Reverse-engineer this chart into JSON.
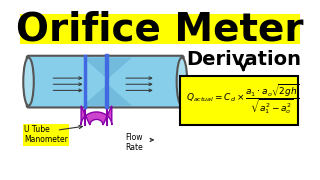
{
  "title": "Orifice Meter",
  "title_bg": "#FFFF00",
  "title_color": "#000000",
  "title_fontsize": 28,
  "bg_color": "#FFFFFF",
  "pipe_color": "#87CEEB",
  "pipe_border": "#555555",
  "pipe_dark": "#4488AA",
  "orifice_color": "#4169E1",
  "manometer_color": "#CC44CC",
  "manometer_border": "#8800AA",
  "flow_arrows_color": "#333333",
  "derivation_text": "Derivation",
  "derivation_color": "#000000",
  "derivation_fontsize": 14,
  "formula_bg": "#FFFF00",
  "formula_border": "#000000",
  "label_utube": "U Tube\nManometer",
  "label_flow": "Flow\nRate",
  "arrow_color": "#333333"
}
